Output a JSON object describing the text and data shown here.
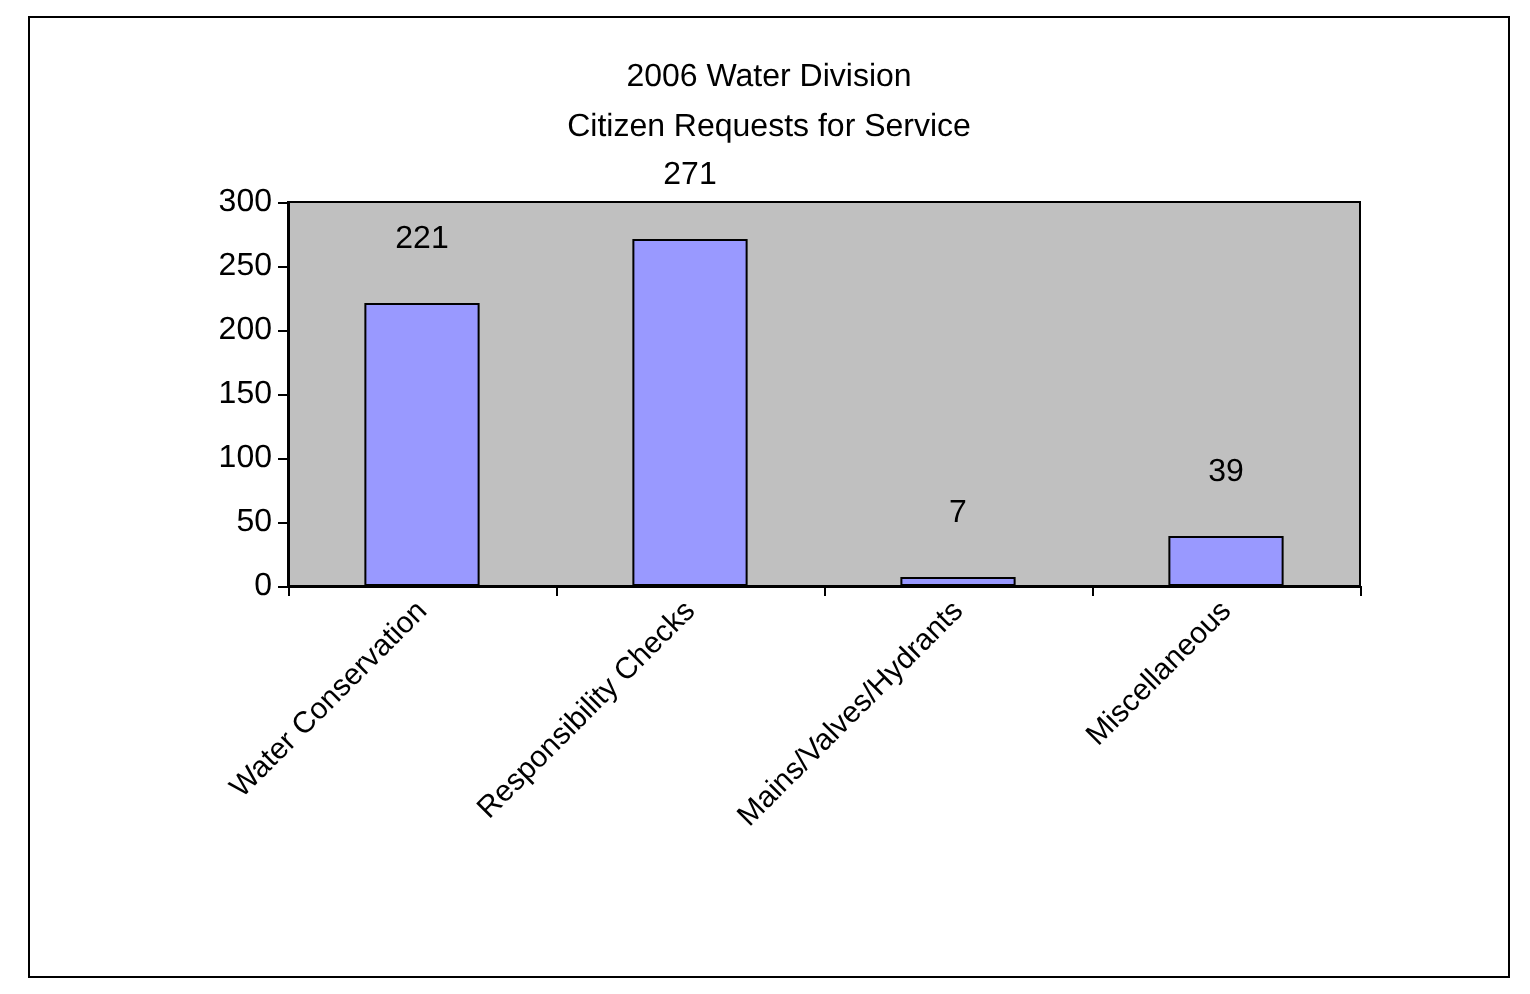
{
  "chart_data": {
    "type": "bar",
    "title": "2006 Water Division\nCitizen Requests for Service",
    "categories": [
      "Water Conservation",
      "Responsibility Checks",
      "Mains/Valves/Hydrants",
      "Miscellaneous"
    ],
    "values": [
      221,
      271,
      7,
      39
    ],
    "color": "#9999ff",
    "ylim": [
      0,
      300
    ],
    "yticks": [
      0,
      50,
      100,
      150,
      200,
      250,
      300
    ],
    "grid": false,
    "data_labels": true
  }
}
